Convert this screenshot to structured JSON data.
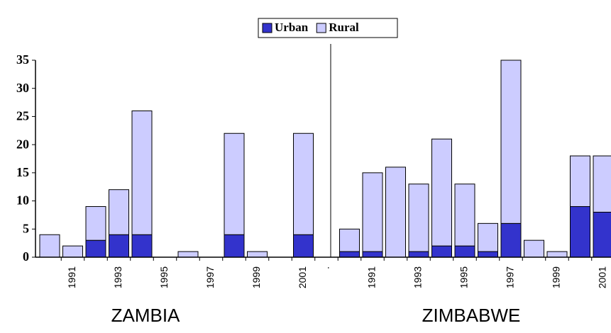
{
  "chart_data": {
    "type": "stacked_bar",
    "categories": [
      null,
      "1991",
      null,
      "1993",
      null,
      "1995",
      null,
      "1997",
      null,
      "1999",
      null,
      "2001",
      ".",
      null,
      "1991",
      null,
      "1993",
      null,
      "1995",
      null,
      "1997",
      null,
      "1999",
      null,
      "2001"
    ],
    "series": [
      {
        "name": "Urban",
        "color": "#3333cc",
        "values": [
          0,
          0,
          3,
          4,
          4,
          0,
          0,
          0,
          4,
          0,
          0,
          4,
          null,
          1,
          1,
          0,
          1,
          2,
          2,
          1,
          6,
          0,
          0,
          9,
          8
        ]
      },
      {
        "name": "Rural",
        "color": "#ccccff",
        "values": [
          4,
          2,
          6,
          8,
          22,
          0,
          1,
          0,
          18,
          1,
          0,
          18,
          null,
          4,
          14,
          16,
          12,
          19,
          11,
          5,
          29,
          3,
          1,
          9,
          10
        ]
      }
    ],
    "ylim": [
      0,
      35
    ],
    "yticks": [
      0,
      5,
      10,
      15,
      20,
      25,
      30,
      35
    ],
    "annotations": [
      "ZAMBIA",
      "ZIMBABWE"
    ],
    "legend": "top"
  }
}
